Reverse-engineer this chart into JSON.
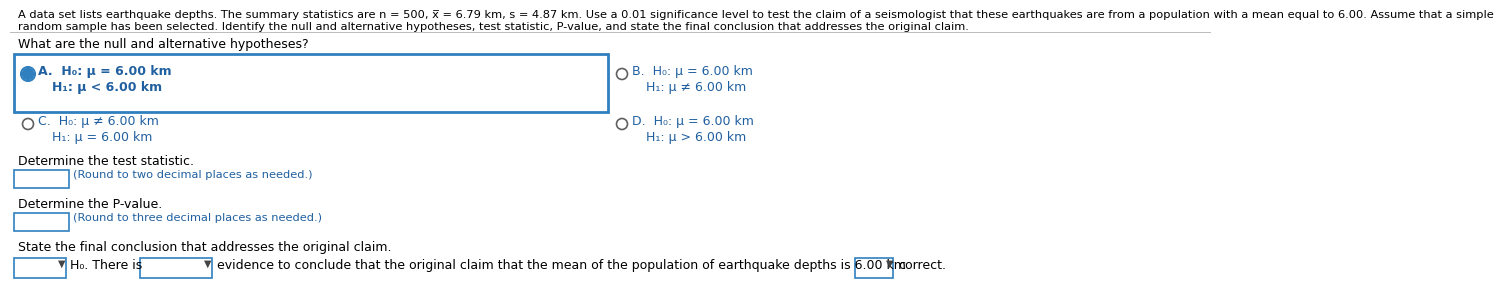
{
  "header_line1": "A data set lists earthquake depths. The summary statistics are n = 500, x̅ = 6.79 km, s = 4.87 km. Use a 0.01 significance level to test the claim of a seismologist that these earthquakes are from a population with a mean equal to 6.00. Assume that a simple",
  "header_line2": "random sample has been selected. Identify the null and alternative hypotheses, test statistic, P-value, and state the final conclusion that addresses the original claim.",
  "question": "What are the null and alternative hypotheses?",
  "option_A_line1": "H₀: μ = 6.00 km",
  "option_A_line2": "H₁: μ < 6.00 km",
  "option_B_line1": "H₀: μ = 6.00 km",
  "option_B_line2": "H₁: μ ≠ 6.00 km",
  "option_C_line1": "H₀: μ ≠ 6.00 km",
  "option_C_line2": "H₁: μ = 6.00 km",
  "option_D_line1": "H₀: μ = 6.00 km",
  "option_D_line2": "H₁: μ > 6.00 km",
  "test_stat_label": "Determine the test statistic.",
  "test_stat_hint": "(Round to two decimal places as needed.)",
  "pvalue_label": "Determine the P-value.",
  "pvalue_hint": "(Round to three decimal places as needed.)",
  "conclusion_label": "State the final conclusion that addresses the original claim.",
  "conclusion_text": "evidence to conclude that the original claim that the mean of the population of earthquake depths is 6.00 km",
  "conclusion_end": "correct.",
  "bg_color": "#ffffff",
  "text_color": "#000000",
  "blue_text_color": "#2060a0",
  "selected_box_color": "#3080c0",
  "hint_color": "#2060a0",
  "radio_unsel_color": "#606060",
  "header_fontsize": 8.2,
  "body_fontsize": 9.0,
  "option_fontsize": 9.0
}
